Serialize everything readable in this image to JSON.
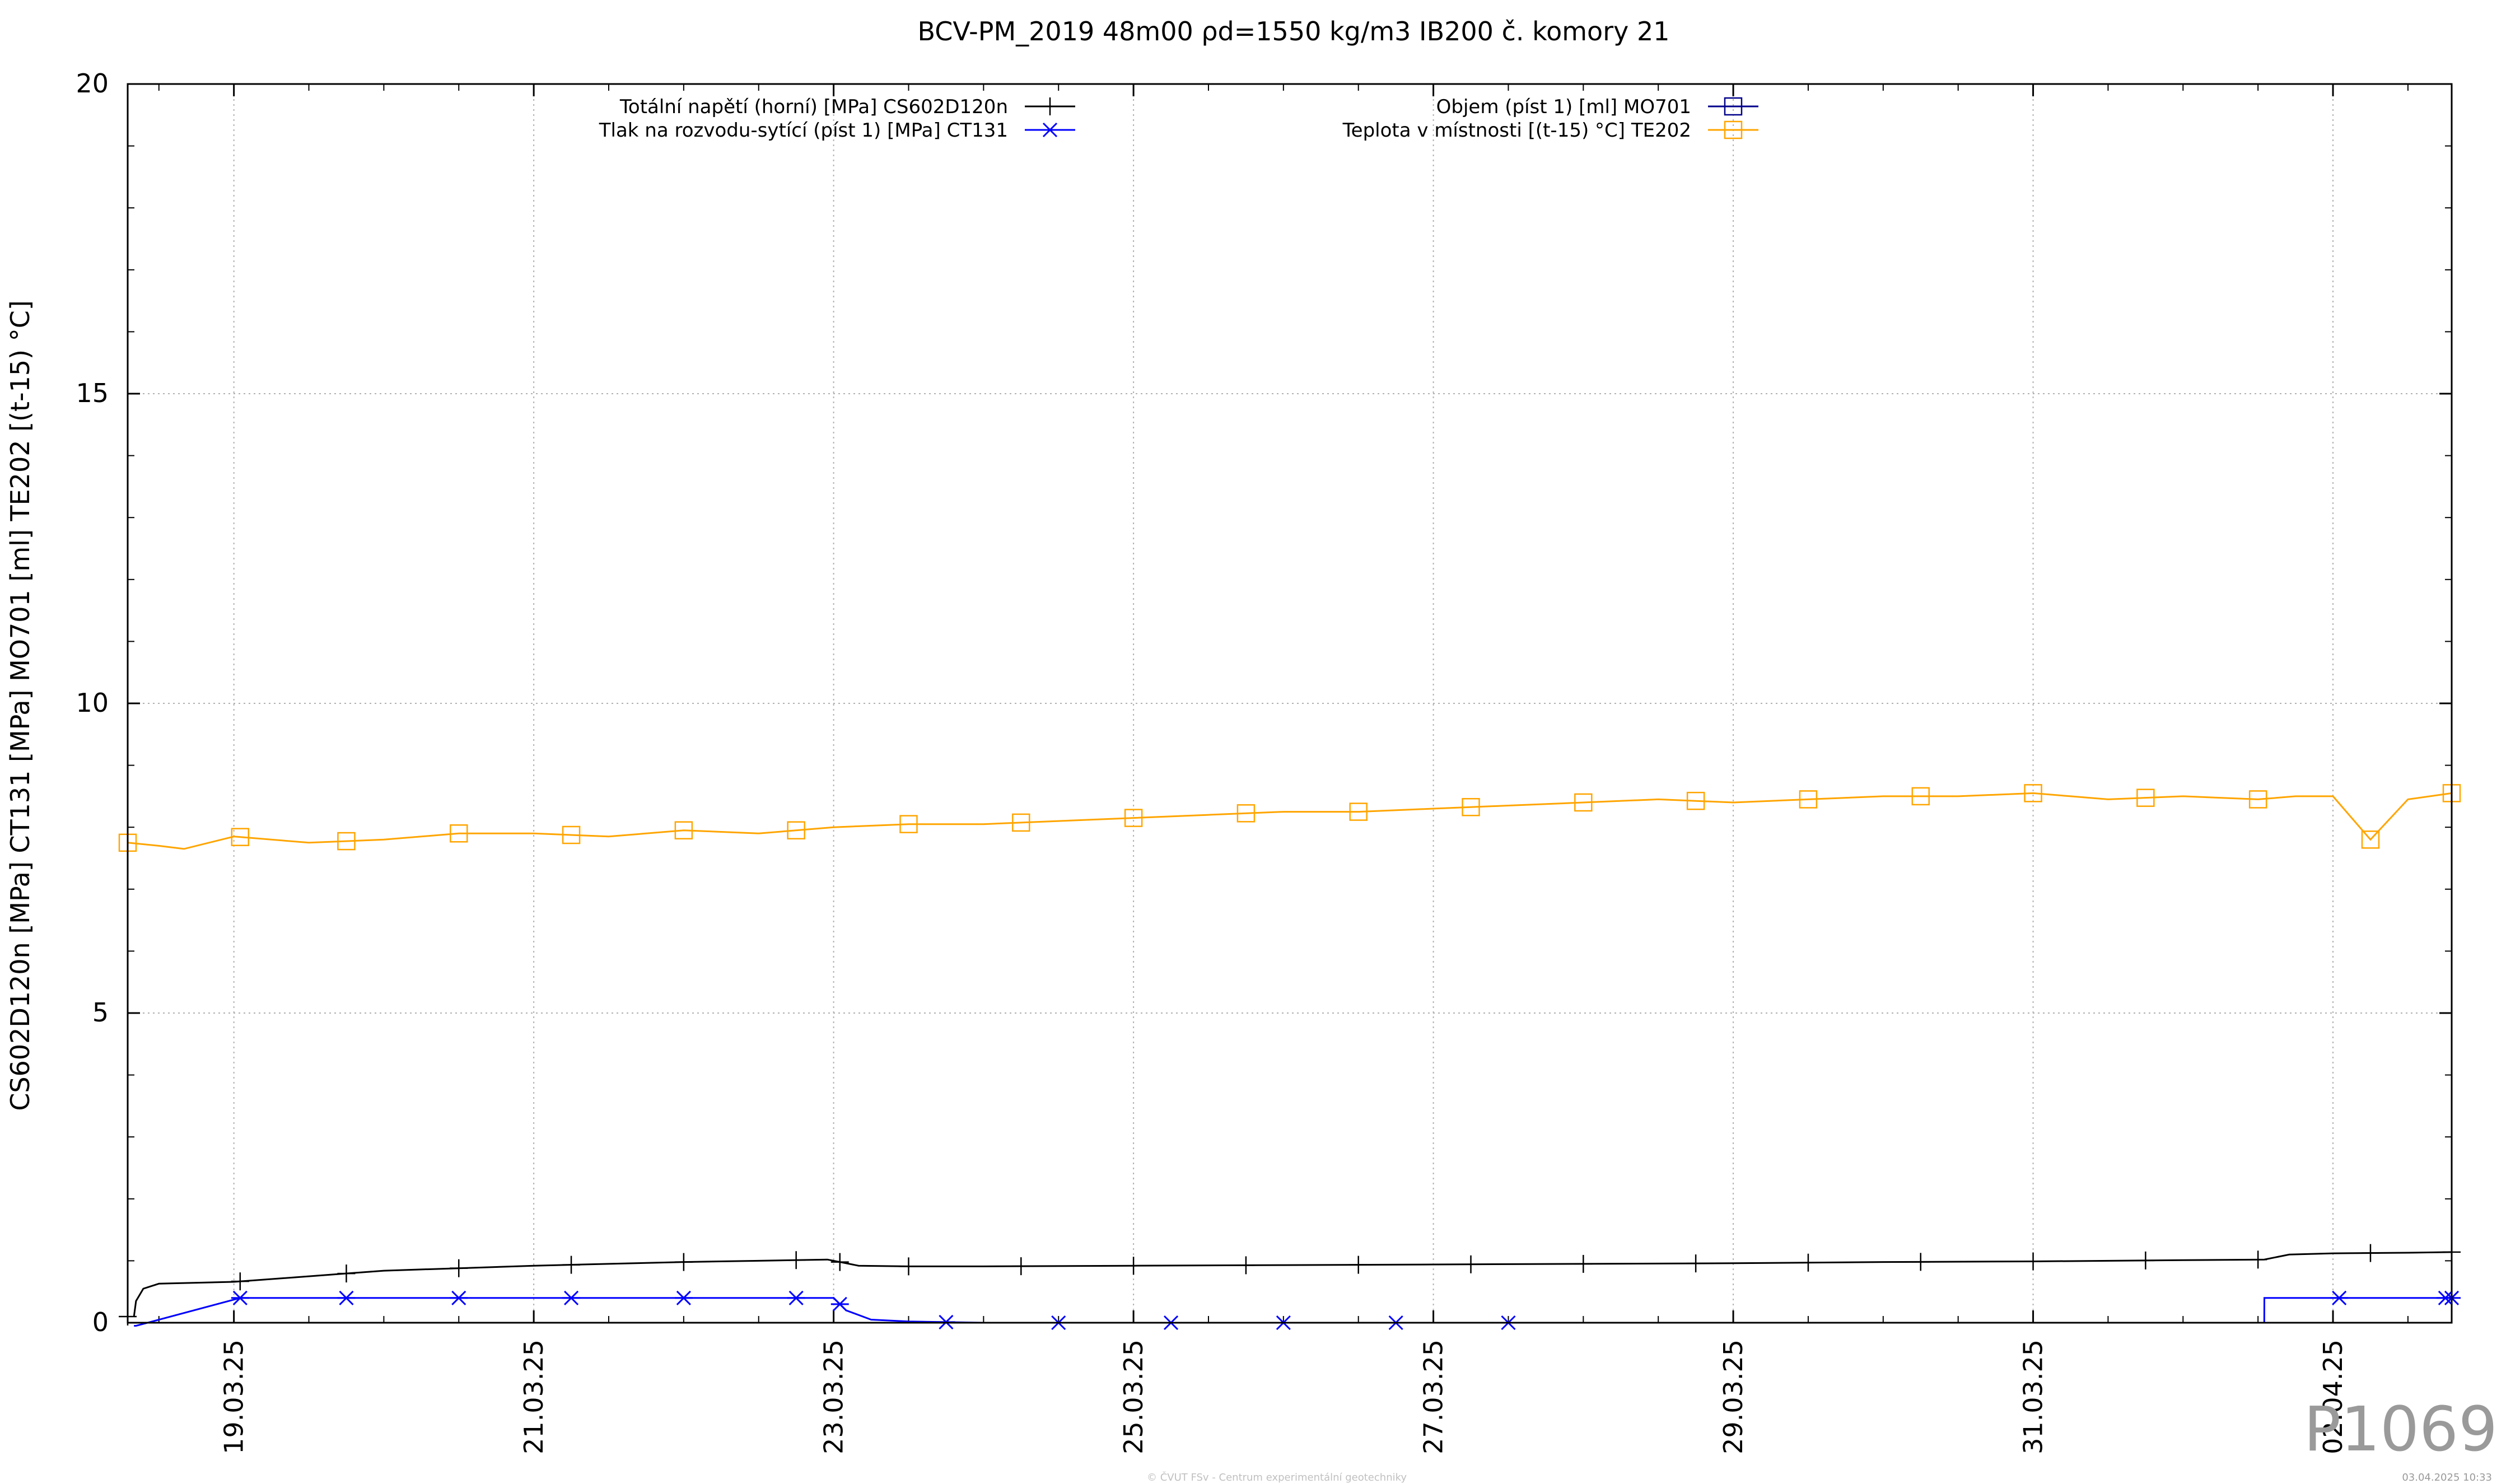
{
  "chart_data": {
    "type": "line",
    "title": "BCV-PM_2019 48m00 ρd=1550 kg/m3 IB200 č. komory 21",
    "ylabel": "CS602D120n [MPa] CT131 [MPa] MO701 [ml] TE202 [(t-15) °C]",
    "xlabel": "",
    "ylim": [
      0,
      20
    ],
    "yticks": [
      "0",
      "5",
      "10",
      "15",
      "20"
    ],
    "xlim": [
      "18.03.25 07:00",
      "02.04.25 19:00"
    ],
    "xticks": [
      "19.03.25",
      "21.03.25",
      "23.03.25",
      "25.03.25",
      "27.03.25",
      "29.03.25",
      "31.03.25",
      "02.04.25"
    ],
    "grid": true,
    "legend_placement": "top",
    "series": [
      {
        "name": "Totální napětí (horní) [MPa] CS602D120n",
        "color": "#000000",
        "marker": "plus",
        "x": [
          "18.03.25 08:00",
          "18.03.25 08:20",
          "18.03.25 09:30",
          "18.03.25 12:00",
          "19.03.25 00:00",
          "19.03.25 12:00",
          "20.03.25 00:00",
          "20.03.25 12:00",
          "21.03.25 00:00",
          "21.03.25 12:00",
          "22.03.25 00:00",
          "22.03.25 12:00",
          "22.03.25 23:00",
          "23.03.25 04:00",
          "23.03.25 12:00",
          "24.03.25 00:00",
          "25.03.25 00:00",
          "26.03.25 00:00",
          "27.03.25 00:00",
          "28.03.25 00:00",
          "29.03.25 00:00",
          "30.03.25 00:00",
          "31.03.25 00:00",
          "01.04.25 00:00",
          "01.04.25 13:00",
          "01.04.25 17:00",
          "02.04.25 00:00",
          "02.04.25 12:00",
          "02.04.25 19:00"
        ],
        "values": [
          0.1,
          0.35,
          0.55,
          0.63,
          0.66,
          0.75,
          0.84,
          0.88,
          0.92,
          0.95,
          0.98,
          1.0,
          1.02,
          0.92,
          0.91,
          0.91,
          0.92,
          0.93,
          0.94,
          0.95,
          0.96,
          0.98,
          0.99,
          1.01,
          1.02,
          1.1,
          1.12,
          1.13,
          1.14
        ]
      },
      {
        "name": "Tlak na rozvodu-sytící (píst 1) [MPa] CT131",
        "color": "#0000ff",
        "marker": "star",
        "x": [
          "18.03.25 08:00",
          "18.03.25 08:20",
          "19.03.25 01:00",
          "20.03.25 00:00",
          "21.03.25 00:00",
          "22.03.25 00:00",
          "23.03.25 00:00",
          "23.03.25 02:00",
          "23.03.25 06:00",
          "23.03.25 12:00",
          "24.03.25 00:00",
          "25.03.25 00:00",
          "26.03.25 00:00",
          "27.03.25 00:00",
          "01.04.25 13:00",
          "01.04.25 13:01",
          "02.04.25 00:00",
          "02.04.25 19:00"
        ],
        "values": [
          -0.05,
          -0.05,
          0.4,
          0.4,
          0.4,
          0.4,
          0.4,
          0.2,
          0.05,
          0.02,
          0.0,
          0.0,
          0.0,
          0.0,
          0.0,
          0.4,
          0.4,
          0.4
        ]
      },
      {
        "name": "Objem (píst 1) [ml] MO701",
        "color": "#00008b",
        "marker": "square",
        "x": [],
        "values": []
      },
      {
        "name": "Teplota v místnosti [(t-15) °C] TE202",
        "color": "#ffa500",
        "marker": "square",
        "x": [
          "18.03.25 07:00",
          "18.03.25 12:00",
          "18.03.25 16:00",
          "19.03.25 00:00",
          "19.03.25 12:00",
          "20.03.25 00:00",
          "20.03.25 12:00",
          "21.03.25 00:00",
          "21.03.25 12:00",
          "22.03.25 00:00",
          "22.03.25 12:00",
          "23.03.25 00:00",
          "23.03.25 12:00",
          "24.03.25 00:00",
          "24.03.25 12:00",
          "25.03.25 00:00",
          "25.03.25 12:00",
          "26.03.25 00:00",
          "26.03.25 12:00",
          "27.03.25 00:00",
          "27.03.25 12:00",
          "28.03.25 00:00",
          "28.03.25 12:00",
          "29.03.25 00:00",
          "29.03.25 12:00",
          "30.03.25 00:00",
          "30.03.25 12:00",
          "31.03.25 00:00",
          "31.03.25 06:00",
          "31.03.25 12:00",
          "01.04.25 00:00",
          "01.04.25 12:00",
          "01.04.25 18:00",
          "02.04.25 00:00",
          "02.04.25 06:00",
          "02.04.25 12:00",
          "02.04.25 19:00"
        ],
        "values": [
          7.75,
          7.7,
          7.65,
          7.85,
          7.75,
          7.8,
          7.9,
          7.9,
          7.85,
          7.95,
          7.9,
          8.0,
          8.05,
          8.05,
          8.1,
          8.15,
          8.2,
          8.25,
          8.25,
          8.3,
          8.35,
          8.4,
          8.45,
          8.4,
          8.45,
          8.5,
          8.5,
          8.55,
          8.5,
          8.45,
          8.5,
          8.45,
          8.5,
          8.5,
          7.8,
          8.45,
          8.55
        ]
      }
    ],
    "markers_x": {
      "CS602D120n": [
        "18.03.25 07:00",
        "19.03.25 01:00",
        "19.03.25 18:00",
        "20.03.25 12:00",
        "21.03.25 06:00",
        "22.03.25 00:00",
        "22.03.25 18:00",
        "23.03.25 01:00",
        "23.03.25 12:00",
        "24.03.25 06:00",
        "25.03.25 00:00",
        "25.03.25 18:00",
        "26.03.25 12:00",
        "27.03.25 06:00",
        "28.03.25 00:00",
        "28.03.25 18:00",
        "29.03.25 12:00",
        "30.03.25 06:00",
        "31.03.25 00:00",
        "31.03.25 18:00",
        "01.04.25 12:00",
        "02.04.25 06:00",
        "03.04.25 00:00",
        "02.04.25 19:00"
      ],
      "CT131": [
        "19.03.25 01:00",
        "19.03.25 18:00",
        "20.03.25 12:00",
        "21.03.25 06:00",
        "22.03.25 00:00",
        "22.03.25 18:00",
        "23.03.25 01:00",
        "23.03.25 18:00",
        "24.03.25 12:00",
        "25.03.25 06:00",
        "26.03.25 00:00",
        "26.03.25 18:00",
        "27.03.25 12:00",
        "02.04.25 01:00",
        "02.04.25 18:00",
        "03.04.25 12:00",
        "02.04.25 19:00"
      ],
      "TE202": [
        "18.03.25 07:00",
        "19.03.25 01:00",
        "19.03.25 18:00",
        "20.03.25 12:00",
        "21.03.25 06:00",
        "22.03.25 00:00",
        "22.03.25 18:00",
        "23.03.25 12:00",
        "24.03.25 06:00",
        "25.03.25 00:00",
        "25.03.25 18:00",
        "26.03.25 12:00",
        "27.03.25 06:00",
        "28.03.25 00:00",
        "28.03.25 18:00",
        "29.03.25 12:00",
        "30.03.25 06:00",
        "31.03.25 00:00",
        "31.03.25 18:00",
        "01.04.25 12:00",
        "02.04.25 06:00",
        "02.04.25 19:00"
      ]
    }
  },
  "figure_id": "P1069",
  "footer": {
    "copyright": "© ČVUT FSv - Centrum experimentální geotechniky",
    "timestamp": "03.04.2025 10:33"
  }
}
